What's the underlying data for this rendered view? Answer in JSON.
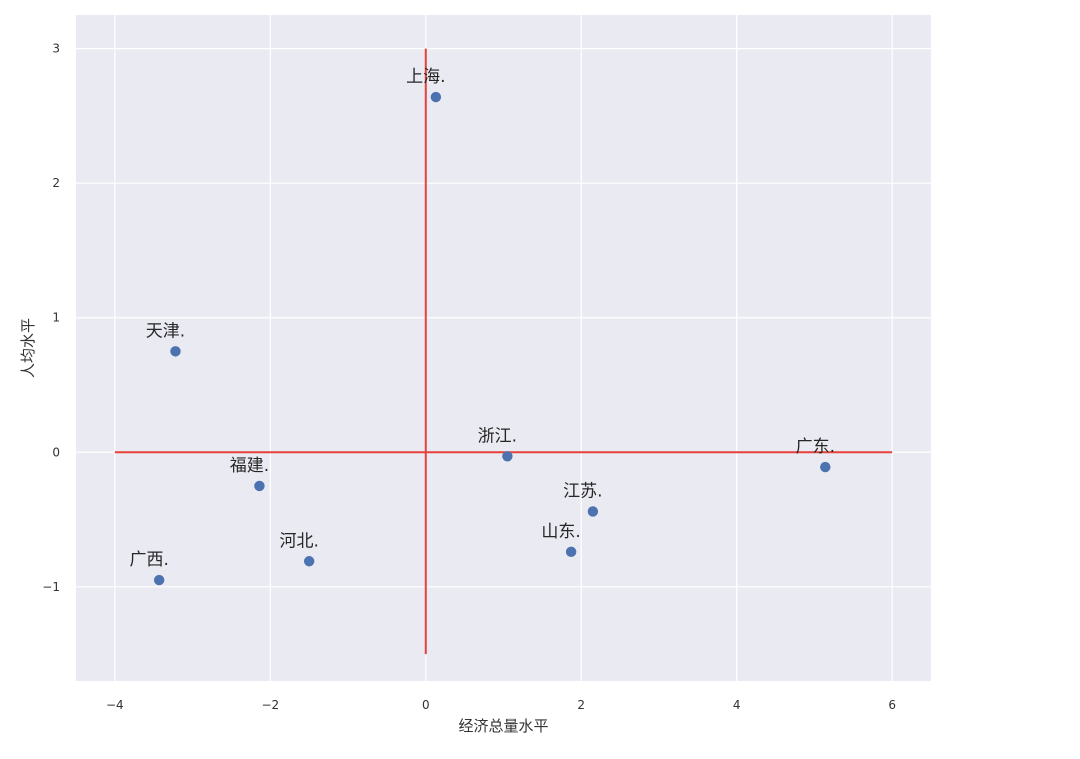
{
  "chart_data": {
    "type": "scatter",
    "title": "",
    "xlabel": "经济总量水平",
    "ylabel": "人均水平",
    "xlim": [
      -4.5,
      6.5
    ],
    "ylim": [
      -1.7,
      3.25
    ],
    "x_ticks": [
      -4,
      -2,
      0,
      2,
      4,
      6
    ],
    "y_ticks": [
      -1,
      0,
      1,
      2,
      3
    ],
    "x_tick_labels": [
      "−4",
      "−2",
      "0",
      "2",
      "4",
      "6"
    ],
    "y_tick_labels": [
      "−1",
      "0",
      "1",
      "2",
      "3"
    ],
    "grid": true,
    "background_color": "#eaeaf2",
    "grid_color": "#ffffff",
    "point_color": "#4c72b0",
    "line_color": "#e8403a",
    "reference_lines": [
      {
        "orientation": "horizontal",
        "y": 0,
        "x_from": -4,
        "x_to": 6
      },
      {
        "orientation": "vertical",
        "x": 0,
        "y_from": -1.5,
        "y_to": 3
      }
    ],
    "points": [
      {
        "label": "上海.",
        "x": 0.13,
        "y": 2.64
      },
      {
        "label": "天津.",
        "x": -3.22,
        "y": 0.75
      },
      {
        "label": "浙江.",
        "x": 1.05,
        "y": -0.03
      },
      {
        "label": "广东.",
        "x": 5.14,
        "y": -0.11
      },
      {
        "label": "福建.",
        "x": -2.14,
        "y": -0.25
      },
      {
        "label": "江苏.",
        "x": 2.15,
        "y": -0.44
      },
      {
        "label": "山东.",
        "x": 1.87,
        "y": -0.74
      },
      {
        "label": "河北.",
        "x": -1.5,
        "y": -0.81
      },
      {
        "label": "广西.",
        "x": -3.43,
        "y": -0.95
      }
    ]
  }
}
